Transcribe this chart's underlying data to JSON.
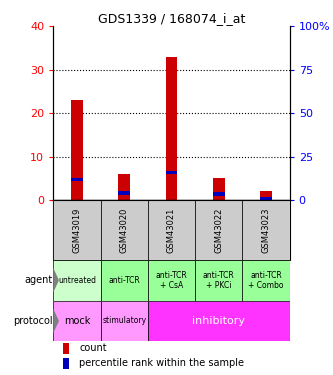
{
  "title": "GDS1339 / 168074_i_at",
  "samples": [
    "GSM43019",
    "GSM43020",
    "GSM43021",
    "GSM43022",
    "GSM43023"
  ],
  "count_values": [
    23,
    6,
    33,
    5,
    2
  ],
  "percentile_values": [
    12,
    4,
    16,
    3.5,
    1
  ],
  "left_ylim": [
    0,
    40
  ],
  "right_ylim": [
    0,
    100
  ],
  "left_yticks": [
    0,
    10,
    20,
    30,
    40
  ],
  "right_yticks": [
    0,
    25,
    50,
    75,
    100
  ],
  "left_yticklabels": [
    "0",
    "10",
    "20",
    "30",
    "40"
  ],
  "right_yticklabels": [
    "0",
    "25",
    "50",
    "75",
    "100%"
  ],
  "agent_labels": [
    "untreated",
    "anti-TCR",
    "anti-TCR\n+ CsA",
    "anti-TCR\n+ PKCi",
    "anti-TCR\n+ Combo"
  ],
  "agent_color_untreated": "#ccffcc",
  "agent_color_treated": "#99ff99",
  "protocol_color_mock": "#ff99ff",
  "protocol_color_stim": "#ff99ff",
  "protocol_color_inhib": "#ff33ff",
  "sample_bg_color": "#cccccc",
  "count_color": "#cc0000",
  "percentile_color": "#0000bb",
  "bar_width": 0.25,
  "blue_bar_height": 0.8,
  "legend_count_label": "count",
  "legend_percentile_label": "percentile rank within the sample"
}
